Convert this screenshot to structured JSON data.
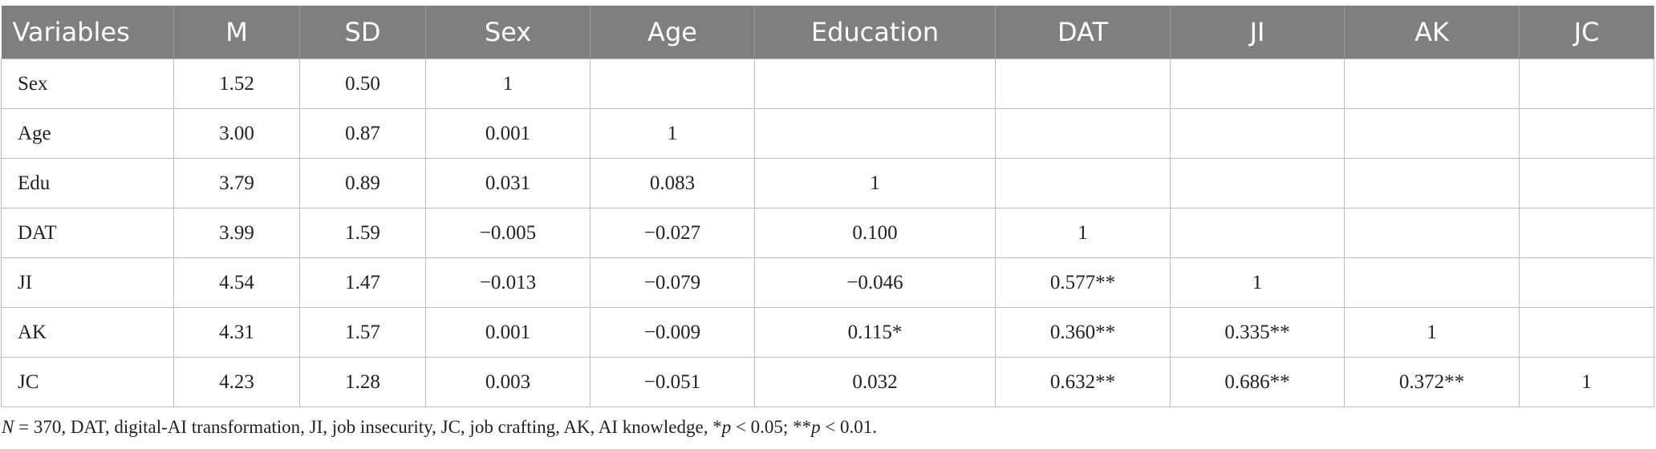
{
  "table": {
    "header": [
      "Variables",
      "M",
      "SD",
      "Sex",
      "Age",
      "Education",
      "DAT",
      "JI",
      "AK",
      "JC"
    ],
    "rows": [
      [
        "Sex",
        "1.52",
        "0.50",
        "1"
      ],
      [
        "Age",
        "3.00",
        "0.87",
        "0.001",
        "1"
      ],
      [
        "Edu",
        "3.79",
        "0.89",
        "0.031",
        "0.083",
        "1"
      ],
      [
        "DAT",
        "3.99",
        "1.59",
        "−0.005",
        "−0.027",
        "0.100",
        "1"
      ],
      [
        "JI",
        "4.54",
        "1.47",
        "−0.013",
        "−0.079",
        "−0.046",
        "0.577**",
        "1"
      ],
      [
        "AK",
        "4.31",
        "1.57",
        "0.001",
        "−0.009",
        "0.115*",
        "0.360**",
        "0.335**",
        "1"
      ],
      [
        "JC",
        "4.23",
        "1.28",
        "0.003",
        "−0.051",
        "0.032",
        "0.632**",
        "0.686**",
        "0.372**",
        "1"
      ]
    ]
  },
  "footnote": [
    {
      "text": "N",
      "italic": true
    },
    {
      "text": " = 370, DAT, digital-AI transformation, JI, job insecurity, JC, job crafting, AK, AI knowledge, *"
    },
    {
      "text": "p",
      "italic": true
    },
    {
      "text": " < 0.05; **"
    },
    {
      "text": "p",
      "italic": true
    },
    {
      "text": " < 0.01."
    }
  ]
}
